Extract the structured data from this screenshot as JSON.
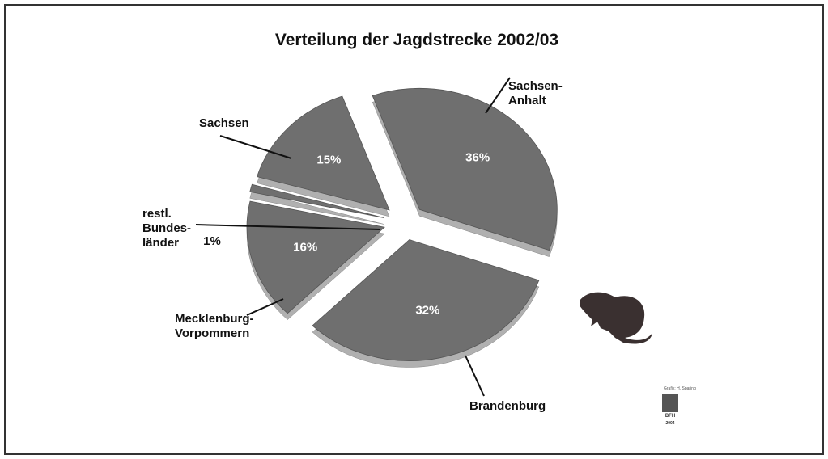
{
  "chart_data": {
    "type": "pie",
    "title": "Verteilung der Jagdstrecke 2002/03",
    "categories": [
      "Sachsen-\nAnhalt",
      "Brandenburg",
      "Mecklenburg-\nVorpommern",
      "restl.\nBundes-\nländer",
      "Sachsen"
    ],
    "values": [
      36,
      32,
      16,
      1,
      15
    ],
    "value_labels": [
      "36%",
      "32%",
      "16%",
      "1%",
      "15%"
    ],
    "color": "#6f6f6f"
  },
  "credit": {
    "author": "Grafik: H. Sparing",
    "logo": "BFH",
    "year": "2004"
  }
}
